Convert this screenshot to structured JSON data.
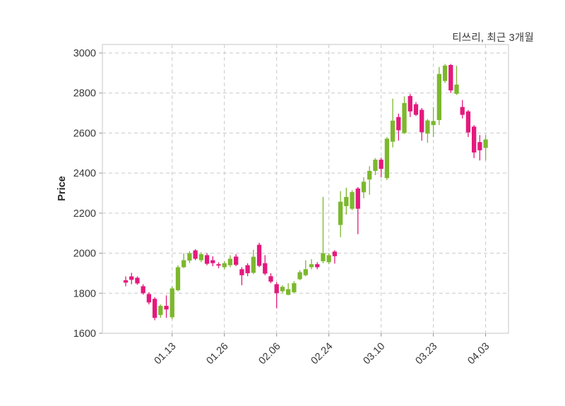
{
  "chart_data": {
    "type": "candlestick",
    "title": "티쓰리, 최근 3개월",
    "ylabel": "Price",
    "ylim": [
      1600,
      3000
    ],
    "yticks": [
      1600,
      1800,
      2000,
      2200,
      2400,
      2600,
      2800,
      3000
    ],
    "grid": true,
    "legend": null,
    "xticks": [
      {
        "index": 8,
        "label": "01.13"
      },
      {
        "index": 17,
        "label": "01.26"
      },
      {
        "index": 26,
        "label": "02.06"
      },
      {
        "index": 35,
        "label": "02.24"
      },
      {
        "index": 44,
        "label": "03.10"
      },
      {
        "index": 53,
        "label": "03.23"
      },
      {
        "index": 62,
        "label": "04.03"
      }
    ],
    "colors": {
      "up": "#7cb82e",
      "down": "#e4197d",
      "grid": "#c9c9c9",
      "border": "#cfcfcf",
      "tick": "#8a8a8a",
      "text": "#383838"
    },
    "candle_format": [
      "open",
      "high",
      "low",
      "close"
    ],
    "candles": [
      [
        1865,
        1884,
        1835,
        1853
      ],
      [
        1884,
        1902,
        1845,
        1867
      ],
      [
        1877,
        1884,
        1842,
        1849
      ],
      [
        1835,
        1845,
        1793,
        1800
      ],
      [
        1796,
        1805,
        1744,
        1754
      ],
      [
        1772,
        1780,
        1665,
        1677
      ],
      [
        1691,
        1744,
        1677,
        1737
      ],
      [
        1737,
        1789,
        1677,
        1719
      ],
      [
        1680,
        1835,
        1670,
        1824
      ],
      [
        1815,
        1940,
        1810,
        1930
      ],
      [
        1930,
        2000,
        1925,
        1965
      ],
      [
        1963,
        2010,
        1950,
        2000
      ],
      [
        2014,
        2020,
        1965,
        1972
      ],
      [
        1965,
        2005,
        1955,
        1995
      ],
      [
        1990,
        2000,
        1940,
        1947
      ],
      [
        1965,
        1985,
        1935,
        1950
      ],
      [
        1945,
        1955,
        1925,
        1938
      ],
      [
        1930,
        1960,
        1920,
        1950
      ],
      [
        1940,
        1990,
        1930,
        1972
      ],
      [
        1983,
        1995,
        1935,
        1942
      ],
      [
        1920,
        1930,
        1840,
        1890
      ],
      [
        1940,
        1950,
        1885,
        1900
      ],
      [
        1902,
        2017,
        1895,
        1982
      ],
      [
        2042,
        2052,
        1930,
        1937
      ],
      [
        1950,
        1990,
        1890,
        1898
      ],
      [
        1885,
        1900,
        1850,
        1858
      ],
      [
        1845,
        1855,
        1725,
        1800
      ],
      [
        1810,
        1840,
        1800,
        1832
      ],
      [
        1792,
        1850,
        1790,
        1820
      ],
      [
        1805,
        1860,
        1800,
        1850
      ],
      [
        1870,
        1915,
        1865,
        1905
      ],
      [
        1890,
        1965,
        1885,
        1920
      ],
      [
        1930,
        1970,
        1920,
        1945
      ],
      [
        1945,
        1955,
        1920,
        1930
      ],
      [
        1960,
        2281,
        1950,
        2000
      ],
      [
        1955,
        2000,
        1945,
        1990
      ],
      [
        2008,
        2015,
        1948,
        1985
      ],
      [
        2141,
        2310,
        2080,
        2257
      ],
      [
        2235,
        2327,
        2193,
        2281
      ],
      [
        2222,
        2315,
        2215,
        2305
      ],
      [
        2323,
        2330,
        2095,
        2222
      ],
      [
        2304,
        2379,
        2274,
        2357
      ],
      [
        2368,
        2435,
        2292,
        2411
      ],
      [
        2411,
        2475,
        2390,
        2467
      ],
      [
        2467,
        2477,
        2379,
        2421
      ],
      [
        2375,
        2580,
        2365,
        2572
      ],
      [
        2557,
        2772,
        2528,
        2662
      ],
      [
        2680,
        2697,
        2562,
        2614
      ],
      [
        2600,
        2783,
        2595,
        2750
      ],
      [
        2785,
        2795,
        2680,
        2708
      ],
      [
        2744,
        2755,
        2685,
        2691
      ],
      [
        2716,
        2725,
        2562,
        2604
      ],
      [
        2597,
        2670,
        2551,
        2663
      ],
      [
        2640,
        2730,
        2580,
        2660
      ],
      [
        2665,
        2930,
        2640,
        2895
      ],
      [
        2860,
        2945,
        2850,
        2937
      ],
      [
        2940,
        2945,
        2800,
        2813
      ],
      [
        2796,
        2936,
        2790,
        2842
      ],
      [
        2730,
        2765,
        2673,
        2691
      ],
      [
        2708,
        2715,
        2580,
        2603
      ],
      [
        2632,
        2640,
        2475,
        2503
      ],
      [
        2555,
        2590,
        2463,
        2514
      ],
      [
        2526,
        2590,
        2463,
        2568
      ]
    ]
  }
}
